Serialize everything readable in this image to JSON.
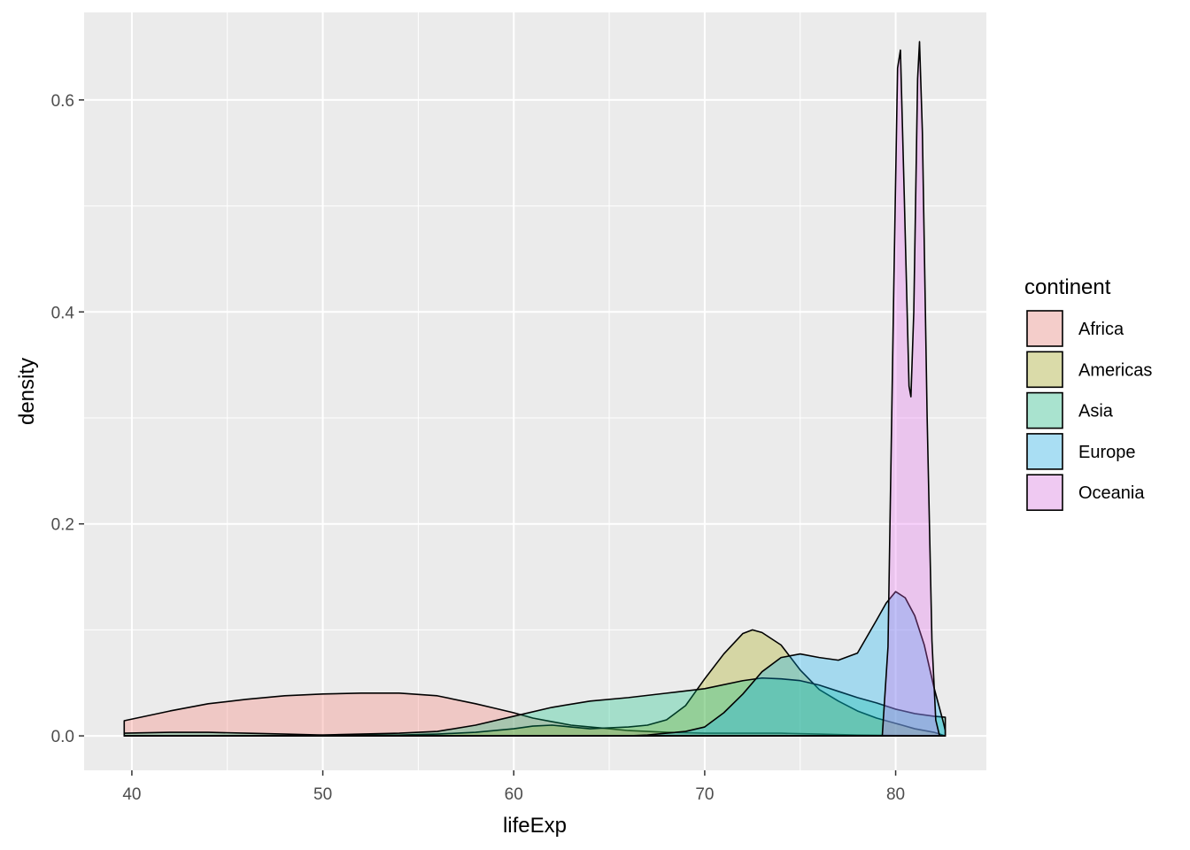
{
  "chart_data": {
    "type": "area",
    "subtype": "density",
    "title": "",
    "xlabel": "lifeExp",
    "ylabel": "density",
    "xlim": [
      37.5,
      84.75
    ],
    "ylim": [
      -0.0325,
      0.6826
    ],
    "x_ticks": [
      40,
      50,
      60,
      70,
      80
    ],
    "x_tick_labels": [
      "40",
      "50",
      "60",
      "70",
      "80"
    ],
    "y_ticks": [
      0.0,
      0.2,
      0.4,
      0.6
    ],
    "y_tick_labels": [
      "0.0",
      "0.2",
      "0.4",
      "0.6"
    ],
    "grid": true,
    "legend_title": "continent",
    "legend_position": "right",
    "fill_alpha": 0.3,
    "series": [
      {
        "name": "Africa",
        "color": "#F8766D",
        "points": [
          [
            39.6,
            0.0143
          ],
          [
            42,
            0.0235
          ],
          [
            44,
            0.0303
          ],
          [
            46,
            0.0345
          ],
          [
            48,
            0.0378
          ],
          [
            50,
            0.0395
          ],
          [
            52,
            0.0403
          ],
          [
            54,
            0.0403
          ],
          [
            56,
            0.0378
          ],
          [
            58,
            0.0303
          ],
          [
            59,
            0.0261
          ],
          [
            60,
            0.0218
          ],
          [
            61,
            0.0168
          ],
          [
            62,
            0.0134
          ],
          [
            63,
            0.0101
          ],
          [
            64,
            0.0084
          ],
          [
            65,
            0.0067
          ],
          [
            66,
            0.005
          ],
          [
            68,
            0.0034
          ],
          [
            70,
            0.0025
          ],
          [
            72,
            0.0025
          ],
          [
            74,
            0.0025
          ],
          [
            76,
            0.0017
          ],
          [
            78,
            0.0008
          ],
          [
            80,
            0.0004
          ],
          [
            82.6,
            0.0
          ]
        ]
      },
      {
        "name": "Americas",
        "color": "#A3A500",
        "points": [
          [
            39.6,
            0.0
          ],
          [
            48,
            0.0
          ],
          [
            50,
            0.0008
          ],
          [
            52,
            0.0008
          ],
          [
            54,
            0.0008
          ],
          [
            56,
            0.0017
          ],
          [
            58,
            0.0034
          ],
          [
            60,
            0.0067
          ],
          [
            61,
            0.0092
          ],
          [
            62,
            0.0101
          ],
          [
            63,
            0.0084
          ],
          [
            64,
            0.0067
          ],
          [
            65,
            0.0076
          ],
          [
            66,
            0.0084
          ],
          [
            67,
            0.0101
          ],
          [
            68,
            0.0151
          ],
          [
            69,
            0.0286
          ],
          [
            70,
            0.0538
          ],
          [
            71,
            0.0773
          ],
          [
            72,
            0.0966
          ],
          [
            72.5,
            0.1
          ],
          [
            73,
            0.0975
          ],
          [
            74,
            0.0857
          ],
          [
            75,
            0.0622
          ],
          [
            76,
            0.0437
          ],
          [
            77,
            0.0328
          ],
          [
            78,
            0.0235
          ],
          [
            79,
            0.0168
          ],
          [
            80,
            0.0118
          ],
          [
            81,
            0.0067
          ],
          [
            82,
            0.0034
          ],
          [
            82.6,
            0.0
          ]
        ]
      },
      {
        "name": "Asia",
        "color": "#00BF7D",
        "points": [
          [
            39.6,
            0.0025
          ],
          [
            42,
            0.0034
          ],
          [
            44,
            0.0034
          ],
          [
            46,
            0.0025
          ],
          [
            48,
            0.0017
          ],
          [
            50,
            0.0008
          ],
          [
            52,
            0.0017
          ],
          [
            54,
            0.0025
          ],
          [
            56,
            0.0042
          ],
          [
            58,
            0.0101
          ],
          [
            60,
            0.0185
          ],
          [
            62,
            0.0269
          ],
          [
            64,
            0.0328
          ],
          [
            66,
            0.0361
          ],
          [
            68,
            0.0403
          ],
          [
            70,
            0.0445
          ],
          [
            72,
            0.0521
          ],
          [
            73,
            0.0546
          ],
          [
            74,
            0.0538
          ],
          [
            75,
            0.0521
          ],
          [
            76,
            0.0479
          ],
          [
            77,
            0.042
          ],
          [
            78,
            0.0361
          ],
          [
            79,
            0.0311
          ],
          [
            80,
            0.0252
          ],
          [
            81,
            0.021
          ],
          [
            82,
            0.0185
          ],
          [
            82.6,
            0.0176
          ]
        ]
      },
      {
        "name": "Europe",
        "color": "#00B0F6",
        "points": [
          [
            39.6,
            0.0
          ],
          [
            66,
            0.0
          ],
          [
            67,
            0.0008
          ],
          [
            68,
            0.0025
          ],
          [
            69,
            0.0042
          ],
          [
            70,
            0.0084
          ],
          [
            71,
            0.0218
          ],
          [
            72,
            0.0395
          ],
          [
            73,
            0.0605
          ],
          [
            74,
            0.0739
          ],
          [
            75,
            0.0773
          ],
          [
            76,
            0.0739
          ],
          [
            77,
            0.0714
          ],
          [
            78,
            0.0781
          ],
          [
            79,
            0.1092
          ],
          [
            79.5,
            0.1252
          ],
          [
            80,
            0.1361
          ],
          [
            80.5,
            0.1303
          ],
          [
            81,
            0.1134
          ],
          [
            81.5,
            0.0857
          ],
          [
            82,
            0.0462
          ],
          [
            82.5,
            0.0126
          ],
          [
            82.6,
            0.005
          ]
        ]
      },
      {
        "name": "Oceania",
        "color": "#E76BF3",
        "points": [
          [
            39.6,
            0.0
          ],
          [
            79.3,
            0.0
          ],
          [
            79.6,
            0.084
          ],
          [
            79.9,
            0.42
          ],
          [
            80.1,
            0.63
          ],
          [
            80.25,
            0.647
          ],
          [
            80.45,
            0.51
          ],
          [
            80.7,
            0.33
          ],
          [
            80.8,
            0.32
          ],
          [
            80.95,
            0.4
          ],
          [
            81.15,
            0.62
          ],
          [
            81.25,
            0.655
          ],
          [
            81.4,
            0.57
          ],
          [
            81.65,
            0.3
          ],
          [
            81.9,
            0.09
          ],
          [
            82.1,
            0.015
          ],
          [
            82.3,
            0.0
          ]
        ]
      }
    ]
  }
}
